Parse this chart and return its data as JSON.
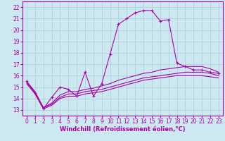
{
  "xlabel": "Windchill (Refroidissement éolien,°C)",
  "background_color": "#cce8f0",
  "grid_color": "#aaccd8",
  "line_color": "#aa00aa",
  "xlim": [
    -0.5,
    23.5
  ],
  "ylim": [
    12.5,
    22.5
  ],
  "yticks": [
    13,
    14,
    15,
    16,
    17,
    18,
    19,
    20,
    21,
    22
  ],
  "xticks": [
    0,
    1,
    2,
    3,
    4,
    5,
    6,
    7,
    8,
    9,
    10,
    11,
    12,
    13,
    14,
    15,
    16,
    17,
    18,
    19,
    20,
    21,
    22,
    23
  ],
  "line1_x": [
    0,
    1,
    2,
    3,
    4,
    5,
    6,
    7,
    8,
    9,
    10,
    11,
    12,
    13,
    14,
    15,
    16,
    17,
    18,
    19,
    20,
    21,
    22,
    23
  ],
  "line1_y": [
    15.5,
    14.5,
    13.1,
    14.1,
    15.0,
    14.8,
    14.2,
    16.3,
    14.2,
    15.3,
    17.9,
    20.5,
    21.0,
    21.5,
    21.7,
    21.7,
    20.8,
    20.9,
    17.1,
    16.8,
    16.5,
    16.5,
    16.3,
    16.2
  ],
  "line2_x": [
    0,
    1,
    2,
    3,
    4,
    5,
    6,
    7,
    8,
    9,
    10,
    11,
    12,
    13,
    14,
    15,
    16,
    17,
    18,
    19,
    20,
    21,
    22,
    23
  ],
  "line2_y": [
    15.5,
    14.6,
    13.2,
    13.6,
    14.3,
    14.6,
    14.6,
    14.8,
    14.9,
    15.1,
    15.3,
    15.6,
    15.8,
    16.0,
    16.2,
    16.3,
    16.5,
    16.6,
    16.7,
    16.8,
    16.8,
    16.8,
    16.6,
    16.3
  ],
  "line3_x": [
    0,
    1,
    2,
    3,
    4,
    5,
    6,
    7,
    8,
    9,
    10,
    11,
    12,
    13,
    14,
    15,
    16,
    17,
    18,
    19,
    20,
    21,
    22,
    23
  ],
  "line3_y": [
    15.4,
    14.5,
    13.2,
    13.5,
    14.1,
    14.4,
    14.4,
    14.6,
    14.7,
    14.8,
    15.0,
    15.2,
    15.4,
    15.6,
    15.8,
    15.9,
    16.0,
    16.1,
    16.2,
    16.3,
    16.3,
    16.3,
    16.2,
    16.0
  ],
  "line4_x": [
    0,
    1,
    2,
    3,
    4,
    5,
    6,
    7,
    8,
    9,
    10,
    11,
    12,
    13,
    14,
    15,
    16,
    17,
    18,
    19,
    20,
    21,
    22,
    23
  ],
  "line4_y": [
    15.3,
    14.4,
    13.1,
    13.4,
    14.0,
    14.2,
    14.2,
    14.4,
    14.5,
    14.6,
    14.8,
    15.0,
    15.2,
    15.4,
    15.6,
    15.7,
    15.8,
    15.9,
    16.0,
    16.0,
    16.0,
    16.0,
    15.9,
    15.8
  ],
  "markersize": 3,
  "linewidth": 0.8,
  "xlabel_fontsize": 6,
  "tick_fontsize": 5.5
}
